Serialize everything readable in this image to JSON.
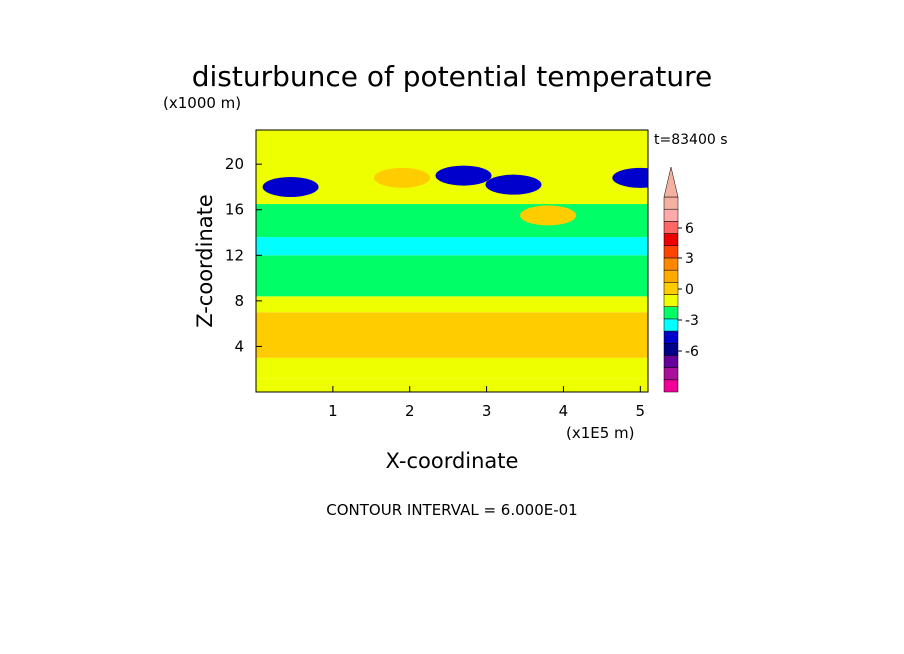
{
  "chart_data": {
    "type": "heatmap",
    "title": "disturbunce of potential temperature",
    "y_unit_label": "(x1000 m)",
    "x_unit_label": "(x1E5 m)",
    "xlabel": "X-coordinate",
    "ylabel": "Z-coordinate",
    "time_label": "t=83400 s",
    "footer": "CONTOUR INTERVAL = 6.000E-01",
    "xlim": [
      0,
      5.1
    ],
    "ylim": [
      0,
      23
    ],
    "x_ticks": [
      "1",
      "2",
      "3",
      "4",
      "5"
    ],
    "y_ticks": [
      "4",
      "8",
      "12",
      "16",
      "20"
    ],
    "contour_interval": 0.6,
    "colorbar": {
      "tick_labels": [
        "6",
        "3",
        "0",
        "-3",
        "-6"
      ],
      "colors": [
        "#ee0099",
        "#aa1199",
        "#660099",
        "#000088",
        "#0000cc",
        "#00ffff",
        "#00ff66",
        "#eeff00",
        "#ffcc00",
        "#ffaa00",
        "#ff8800",
        "#ff4400",
        "#ee0000",
        "#ff6666",
        "#ffaaaa",
        "#f4b0a0"
      ]
    },
    "bands": [
      {
        "z": [
          0,
          1.2
        ],
        "theta": 0.2
      },
      {
        "z": [
          1.2,
          3.0
        ],
        "theta": 0.4
      },
      {
        "z": [
          3.0,
          7.0
        ],
        "theta": 0.8
      },
      {
        "z": [
          7.0,
          8.4
        ],
        "theta": 0.3
      },
      {
        "z": [
          8.4,
          12.0
        ],
        "theta": -0.4
      },
      {
        "z": [
          12.0,
          13.6
        ],
        "theta": -0.9
      },
      {
        "z": [
          13.6,
          16.5
        ],
        "theta": -0.4
      },
      {
        "z": [
          16.5,
          23.0
        ],
        "theta": 0.3
      }
    ],
    "features": [
      {
        "x": 1.9,
        "z": 18.8,
        "theta": 0.8
      },
      {
        "x": 0.45,
        "z": 18.0,
        "theta": -1.5
      },
      {
        "x": 2.7,
        "z": 19.0,
        "theta": -1.5
      },
      {
        "x": 3.35,
        "z": 18.2,
        "theta": -1.4
      },
      {
        "x": 5.0,
        "z": 18.8,
        "theta": -1.4
      },
      {
        "x": 3.8,
        "z": 15.5,
        "theta": 0.8
      }
    ]
  }
}
